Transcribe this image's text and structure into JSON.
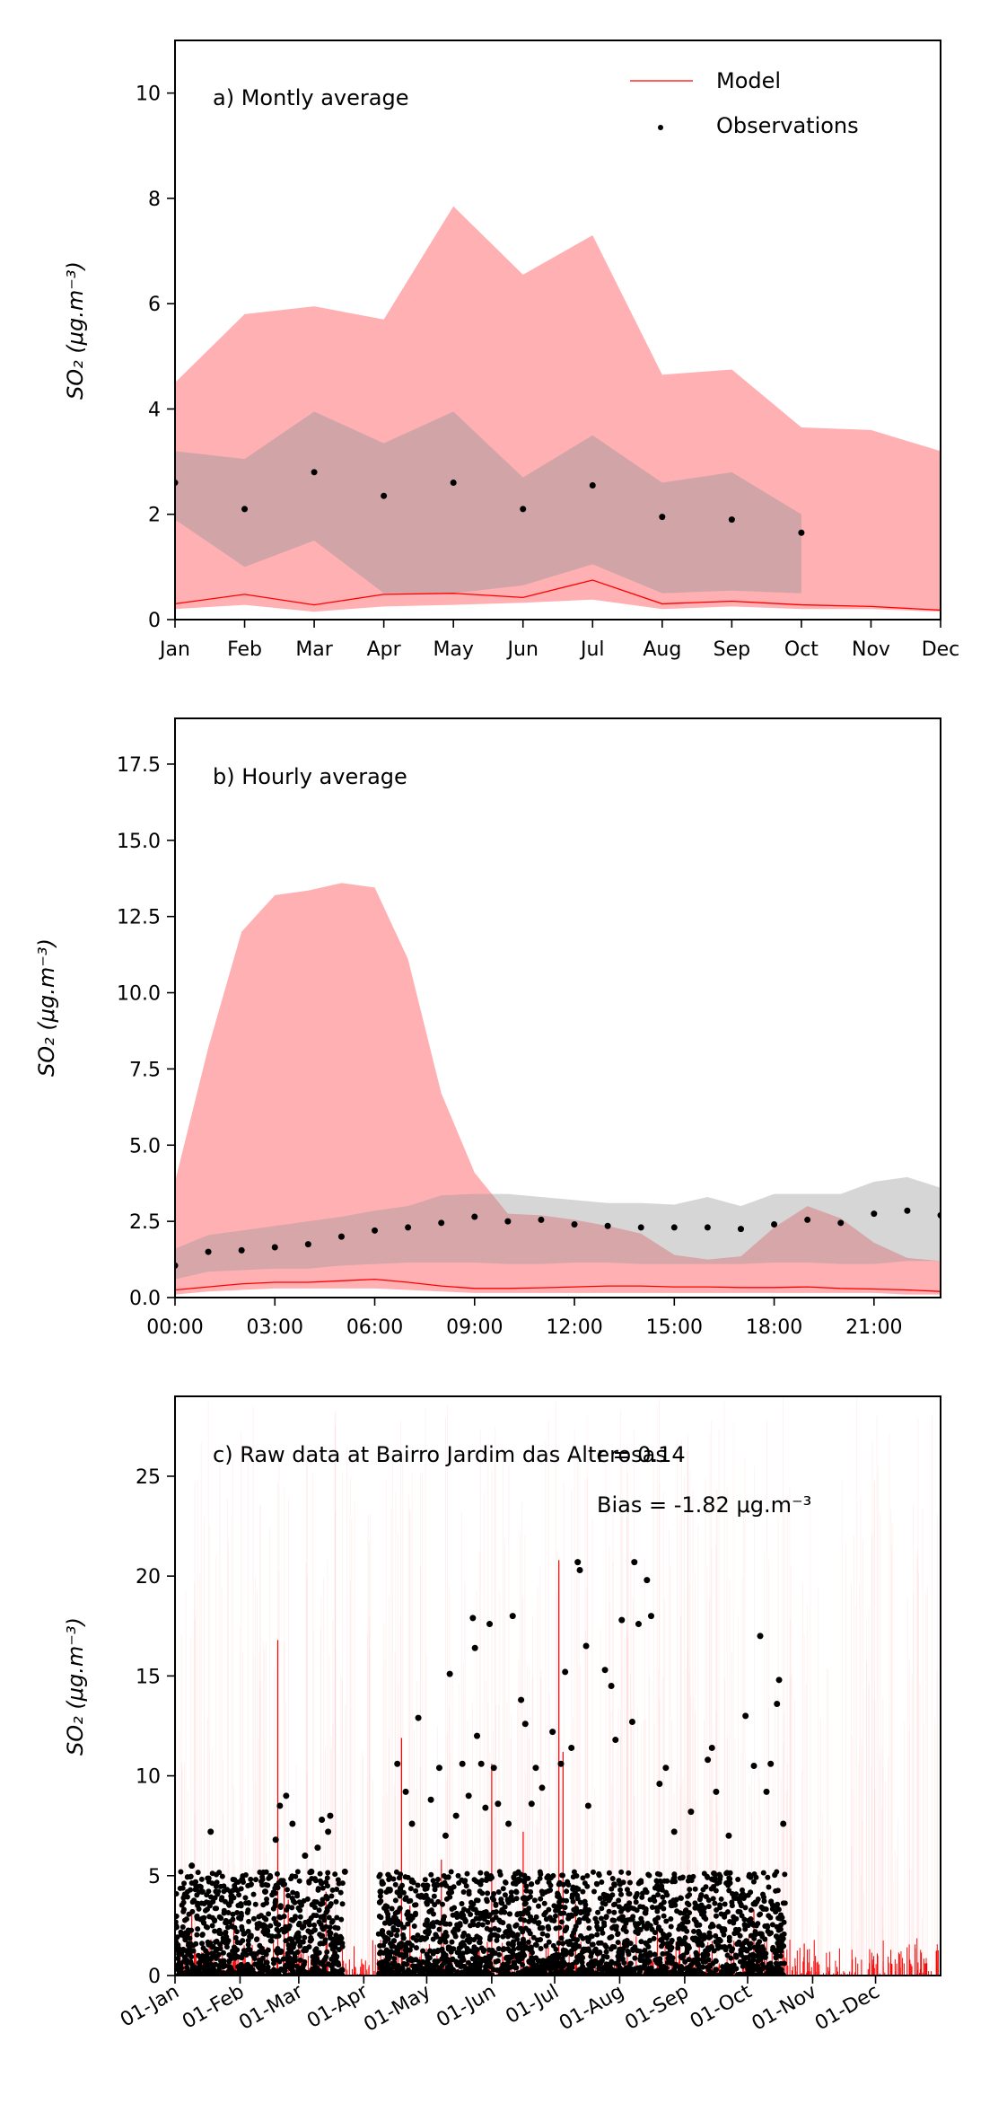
{
  "colors": {
    "model": "#ff0000",
    "model_band": "#ff6f75",
    "obs": "#000000",
    "obs_band": "#999999"
  },
  "legend": {
    "model": "Model",
    "observations": "Observations"
  },
  "chart_data": [
    {
      "type": "line",
      "panel_label": "a) Montly average",
      "ylabel": "SO₂ (μg.m⁻³)",
      "categories": [
        "Jan",
        "Feb",
        "Mar",
        "Apr",
        "May",
        "Jun",
        "Jul",
        "Aug",
        "Sep",
        "Oct",
        "Nov",
        "Dec"
      ],
      "ylim": [
        0,
        11
      ],
      "yticks": [
        "0",
        "2",
        "4",
        "6",
        "8",
        "10"
      ],
      "series": [
        {
          "name": "Model",
          "values": [
            0.3,
            0.48,
            0.28,
            0.48,
            0.5,
            0.42,
            0.75,
            0.3,
            0.35,
            0.28,
            0.25,
            0.18
          ]
        },
        {
          "name": "Observations",
          "values": [
            2.6,
            2.1,
            2.8,
            2.35,
            2.6,
            2.1,
            2.55,
            1.95,
            1.9,
            1.65,
            null,
            null
          ]
        }
      ],
      "model_band": {
        "upper": [
          4.5,
          5.8,
          5.95,
          5.7,
          7.85,
          6.55,
          7.3,
          4.65,
          4.75,
          3.65,
          3.6,
          3.2
        ],
        "lower": [
          0.2,
          0.28,
          0.15,
          0.25,
          0.28,
          0.32,
          0.38,
          0.2,
          0.25,
          0.2,
          0.2,
          0.15
        ]
      },
      "obs_band": {
        "upper": [
          3.2,
          3.05,
          3.95,
          3.35,
          3.95,
          2.7,
          3.5,
          2.6,
          2.8,
          2.0,
          null,
          null
        ],
        "lower": [
          1.9,
          1.0,
          1.5,
          0.5,
          0.5,
          0.65,
          1.05,
          0.5,
          0.55,
          0.5,
          null,
          null
        ]
      }
    },
    {
      "type": "line",
      "panel_label": "b) Hourly average",
      "ylabel": "SO₂ (μg.m⁻³)",
      "xticks": [
        "00:00",
        "03:00",
        "06:00",
        "09:00",
        "12:00",
        "15:00",
        "18:00",
        "21:00"
      ],
      "xlim": [
        0,
        23
      ],
      "ylim": [
        0,
        19
      ],
      "yticks": [
        "0.0",
        "2.5",
        "5.0",
        "7.5",
        "10.0",
        "12.5",
        "15.0",
        "17.5"
      ],
      "series": [
        {
          "name": "Model",
          "values": [
            0.25,
            0.35,
            0.45,
            0.5,
            0.5,
            0.55,
            0.6,
            0.5,
            0.38,
            0.3,
            0.3,
            0.32,
            0.35,
            0.38,
            0.38,
            0.35,
            0.35,
            0.33,
            0.33,
            0.35,
            0.3,
            0.28,
            0.25,
            0.2
          ]
        },
        {
          "name": "Observations",
          "values": [
            1.05,
            1.5,
            1.55,
            1.65,
            1.75,
            2.0,
            2.2,
            2.3,
            2.45,
            2.65,
            2.5,
            2.55,
            2.4,
            2.35,
            2.3,
            2.3,
            2.3,
            2.25,
            2.4,
            2.55,
            2.45,
            2.75,
            2.85,
            2.7
          ]
        }
      ],
      "model_band": {
        "upper": [
          3.8,
          8.2,
          12.0,
          13.2,
          13.35,
          13.6,
          13.45,
          11.1,
          6.7,
          4.1,
          2.75,
          2.7,
          2.55,
          2.35,
          2.1,
          1.4,
          1.25,
          1.35,
          2.3,
          3.0,
          2.6,
          1.8,
          1.3,
          1.2
        ],
        "lower": [
          0.1,
          0.2,
          0.25,
          0.3,
          0.3,
          0.3,
          0.3,
          0.25,
          0.2,
          0.15,
          0.15,
          0.15,
          0.15,
          0.15,
          0.15,
          0.15,
          0.15,
          0.15,
          0.15,
          0.15,
          0.15,
          0.15,
          0.1,
          0.1
        ]
      },
      "obs_band": {
        "upper": [
          1.6,
          2.05,
          2.2,
          2.35,
          2.5,
          2.65,
          2.85,
          3.0,
          3.35,
          3.4,
          3.4,
          3.3,
          3.2,
          3.1,
          3.1,
          3.05,
          3.3,
          3.0,
          3.4,
          3.4,
          3.4,
          3.8,
          3.95,
          3.6
        ],
        "lower": [
          0.6,
          0.85,
          0.9,
          0.95,
          0.95,
          1.05,
          1.1,
          1.15,
          1.15,
          1.15,
          1.1,
          1.1,
          1.15,
          1.15,
          1.1,
          1.1,
          1.1,
          1.1,
          1.15,
          1.15,
          1.1,
          1.1,
          1.2,
          1.2
        ]
      }
    },
    {
      "type": "scatter",
      "panel_label": "c) Raw data at Bairro Jardim das Alterosas",
      "r_text": "r = 0.14",
      "bias_text": "Bias = -1.82 μg.m⁻³",
      "ylabel": "SO₂ (μg.m⁻³)",
      "xticks": [
        "01-Jan",
        "01-Feb",
        "01-Mar",
        "01-Apr",
        "01-May",
        "01-Jun",
        "01-Jul",
        "01-Aug",
        "01-Sep",
        "01-Oct",
        "01-Nov",
        "01-Dec"
      ],
      "xtick_days": [
        0,
        31,
        59,
        90,
        120,
        151,
        181,
        212,
        243,
        273,
        304,
        334
      ],
      "xlim": [
        0,
        365
      ],
      "ylim": [
        0,
        29
      ],
      "yticks": [
        "0",
        "5",
        "10",
        "15",
        "20",
        "25"
      ],
      "observation_high_points": [
        [
          8,
          5.5
        ],
        [
          13,
          4.2
        ],
        [
          17,
          7.2
        ],
        [
          32,
          4.8
        ],
        [
          43,
          4.2
        ],
        [
          48,
          6.8
        ],
        [
          50,
          8.5
        ],
        [
          53,
          9.0
        ],
        [
          56,
          7.6
        ],
        [
          62,
          6.0
        ],
        [
          65,
          5.2
        ],
        [
          68,
          6.4
        ],
        [
          70,
          7.8
        ],
        [
          73,
          7.2
        ],
        [
          74,
          8.0
        ],
        [
          81,
          5.2
        ],
        [
          98,
          4.2
        ],
        [
          106,
          10.6
        ],
        [
          110,
          9.2
        ],
        [
          113,
          7.6
        ],
        [
          116,
          12.9
        ],
        [
          122,
          8.8
        ],
        [
          126,
          10.4
        ],
        [
          129,
          7.0
        ],
        [
          131,
          15.1
        ],
        [
          134,
          8.0
        ],
        [
          137,
          10.6
        ],
        [
          140,
          9.0
        ],
        [
          142,
          17.9
        ],
        [
          143,
          16.4
        ],
        [
          144,
          12.0
        ],
        [
          146,
          10.6
        ],
        [
          148,
          8.4
        ],
        [
          150,
          17.6
        ],
        [
          152,
          10.4
        ],
        [
          154,
          8.6
        ],
        [
          159,
          7.6
        ],
        [
          161,
          18.0
        ],
        [
          165,
          13.8
        ],
        [
          167,
          12.6
        ],
        [
          170,
          8.6
        ],
        [
          172,
          10.4
        ],
        [
          175,
          9.4
        ],
        [
          180,
          12.2
        ],
        [
          184,
          10.6
        ],
        [
          186,
          15.2
        ],
        [
          189,
          11.4
        ],
        [
          192,
          20.7
        ],
        [
          193,
          20.3
        ],
        [
          196,
          16.5
        ],
        [
          197,
          8.5
        ],
        [
          205,
          15.3
        ],
        [
          208,
          14.5
        ],
        [
          210,
          11.8
        ],
        [
          213,
          17.8
        ],
        [
          218,
          12.7
        ],
        [
          219,
          20.7
        ],
        [
          221,
          17.6
        ],
        [
          225,
          19.8
        ],
        [
          227,
          18.0
        ],
        [
          231,
          9.6
        ],
        [
          234,
          10.4
        ],
        [
          238,
          7.2
        ],
        [
          246,
          8.2
        ],
        [
          254,
          10.8
        ],
        [
          256,
          11.4
        ],
        [
          258,
          9.2
        ],
        [
          264,
          7.0
        ],
        [
          272,
          13.0
        ],
        [
          276,
          10.5
        ],
        [
          279,
          17.0
        ],
        [
          282,
          9.2
        ],
        [
          284,
          10.6
        ],
        [
          287,
          13.6
        ],
        [
          288,
          14.8
        ],
        [
          290,
          7.6
        ]
      ],
      "model_spikes": [
        [
          8,
          3.2
        ],
        [
          28,
          2.8
        ],
        [
          49,
          16.8
        ],
        [
          52,
          4.5
        ],
        [
          54,
          3.8
        ],
        [
          72,
          4.2
        ],
        [
          108,
          11.9
        ],
        [
          112,
          3.5
        ],
        [
          127,
          5.8
        ],
        [
          151,
          10.6
        ],
        [
          166,
          7.2
        ],
        [
          183,
          20.8
        ],
        [
          185,
          11.2
        ],
        [
          191,
          3.6
        ],
        [
          230,
          2.8
        ],
        [
          250,
          2.2
        ],
        [
          276,
          3.3
        ],
        [
          300,
          1.6
        ],
        [
          335,
          1.0
        ]
      ]
    }
  ]
}
